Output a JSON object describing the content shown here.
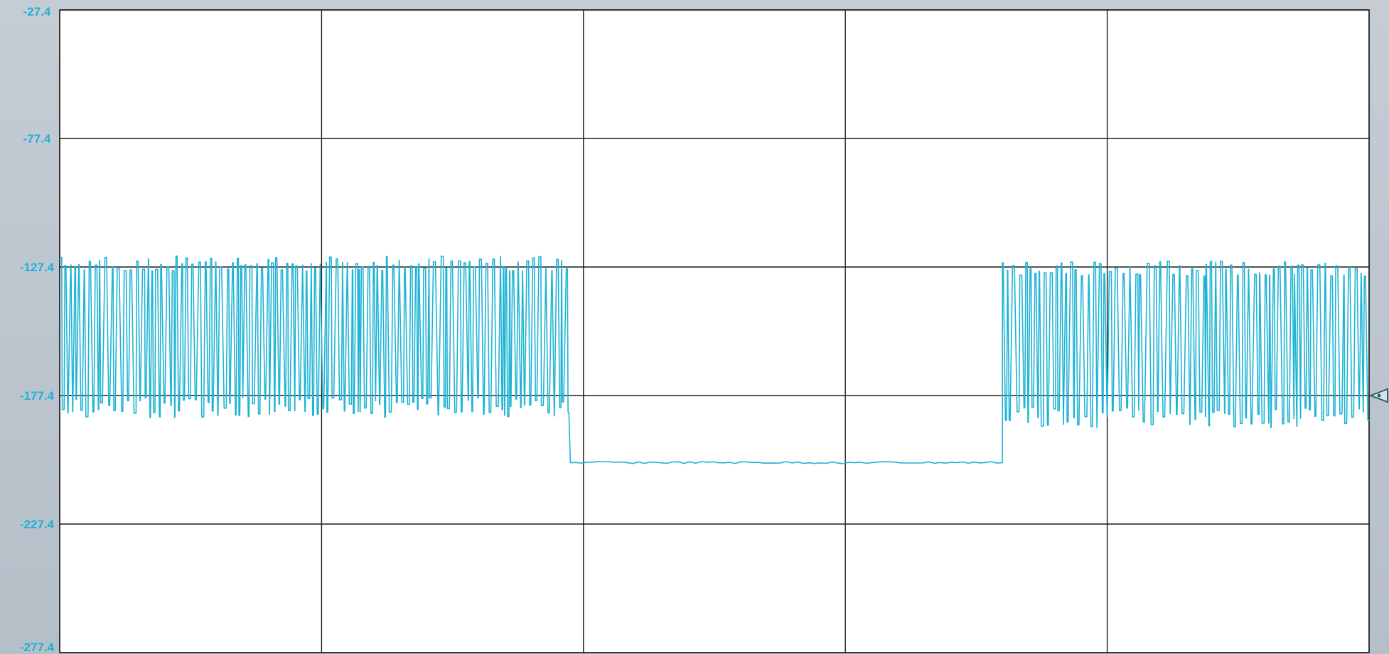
{
  "colors": {
    "trace": "#1fb3d4",
    "tick_label": "#20b0d8",
    "grid": "#1a1a1a",
    "plot_background": "#ffffff",
    "frame_background": "#bcc6ce",
    "marker": "#2f5f6f"
  },
  "reference_marker": {
    "icon": "triangle-marker-icon",
    "value": -177.4
  },
  "chart_data": {
    "type": "line",
    "title": "",
    "xlabel": "",
    "ylabel": "",
    "ylim": [
      -277.4,
      -27.4
    ],
    "y_ticks": [
      -27.4,
      -77.4,
      -127.4,
      -177.4,
      -227.4,
      -277.4
    ],
    "y_tick_labels": [
      "-27.4",
      "-77.4",
      "-127.4",
      "-177.4",
      "-227.4",
      "-277.4"
    ],
    "x_divisions": 5,
    "grid": true,
    "legend": "none",
    "series": [
      {
        "segments": [
          {
            "x_range": [
              0.0,
              0.39
            ],
            "high": -126.0,
            "low": -182.0,
            "pattern": "dense-toggle"
          },
          {
            "x_range": [
              0.39,
              0.72
            ],
            "level": -203.5,
            "pattern": "flat"
          },
          {
            "x_range": [
              0.72,
              1.0
            ],
            "high": -128.0,
            "low": -186.0,
            "pattern": "dense-toggle"
          }
        ]
      }
    ]
  }
}
